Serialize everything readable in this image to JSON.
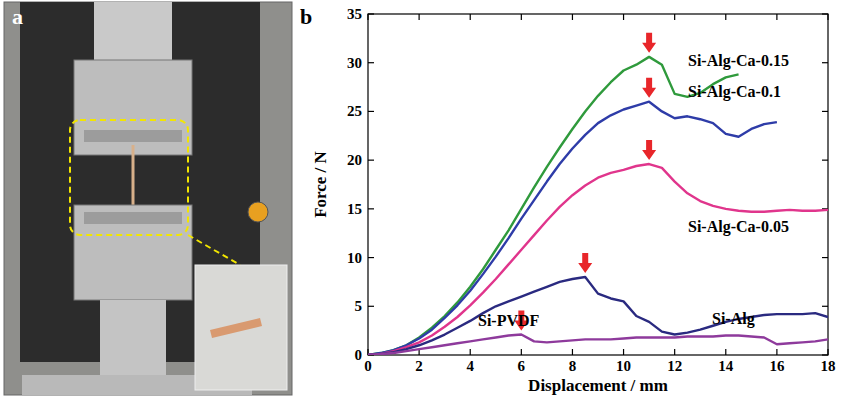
{
  "panel_a": {
    "label": "a"
  },
  "chart_data": {
    "type": "line",
    "panel_label": "b",
    "x_label": "Displacement / mm",
    "y_label": "Force / N",
    "xlim": [
      0,
      18
    ],
    "xticks": [
      0,
      2,
      4,
      6,
      8,
      10,
      12,
      14,
      16,
      18
    ],
    "ylim": [
      0,
      35
    ],
    "yticks": [
      0,
      5,
      10,
      15,
      20,
      25,
      30,
      35
    ],
    "grid": false,
    "x": [
      0,
      0.5,
      1,
      1.5,
      2,
      2.5,
      3,
      3.5,
      4,
      4.5,
      5,
      5.5,
      6,
      6.5,
      7,
      7.5,
      8,
      8.5,
      9,
      9.5,
      10,
      10.5,
      11,
      11.5,
      12,
      12.5,
      13,
      13.5,
      14,
      14.5,
      15,
      15.5,
      16,
      16.5,
      17,
      17.5,
      18
    ],
    "series": [
      {
        "name": "Si-Alg-Ca-0.15",
        "color": "#2f9a3c",
        "values": [
          0,
          0.2,
          0.5,
          1,
          1.8,
          2.8,
          4,
          5.4,
          7,
          8.8,
          10.8,
          12.8,
          15,
          17.2,
          19.3,
          21.3,
          23.2,
          25,
          26.6,
          28,
          29.2,
          29.8,
          30.6,
          29.8,
          26.8,
          26.5,
          26.9,
          27.8,
          28.5,
          28.8,
          null,
          null,
          null,
          null,
          null,
          null,
          null
        ]
      },
      {
        "name": "Si-Alg-Ca-0.1",
        "color": "#2e3ca8",
        "values": [
          0,
          0.2,
          0.5,
          1,
          1.7,
          2.6,
          3.8,
          5.1,
          6.6,
          8.3,
          10.1,
          12,
          14,
          15.9,
          17.8,
          19.6,
          21.2,
          22.6,
          23.8,
          24.6,
          25.2,
          25.6,
          26,
          25,
          24.3,
          24.5,
          24.2,
          23.8,
          22.7,
          22.4,
          23.2,
          23.7,
          23.9,
          null,
          null,
          null,
          null
        ]
      },
      {
        "name": "Si-Alg-Ca-0.05",
        "color": "#e0358c",
        "values": [
          0,
          0.1,
          0.4,
          0.8,
          1.3,
          2,
          2.9,
          3.9,
          5.1,
          6.4,
          7.8,
          9.3,
          10.8,
          12.3,
          13.8,
          15.2,
          16.4,
          17.4,
          18.2,
          18.7,
          19,
          19.4,
          19.6,
          19.2,
          17.8,
          16.6,
          15.8,
          15.3,
          15,
          14.8,
          14.7,
          14.7,
          14.8,
          14.9,
          14.8,
          14.8,
          14.9
        ]
      },
      {
        "name": "Si-Alg",
        "color": "#2a2a80",
        "values": [
          0,
          0.1,
          0.3,
          0.6,
          1,
          1.5,
          2.1,
          2.8,
          3.5,
          4.3,
          5,
          5.5,
          6,
          6.5,
          7,
          7.5,
          7.8,
          8,
          6.3,
          5.8,
          5.5,
          4,
          3.4,
          2.4,
          2.1,
          2.3,
          2.6,
          3,
          3.4,
          3.7,
          3.9,
          4.1,
          4.2,
          4.2,
          4.2,
          4.3,
          3.9
        ]
      },
      {
        "name": "Si-PVDF",
        "color": "#8e3a9c",
        "values": [
          0,
          0.1,
          0.2,
          0.4,
          0.6,
          0.8,
          1,
          1.2,
          1.4,
          1.6,
          1.8,
          2,
          2.1,
          1.4,
          1.3,
          1.4,
          1.5,
          1.6,
          1.6,
          1.6,
          1.7,
          1.8,
          1.8,
          1.8,
          1.8,
          1.9,
          1.9,
          1.9,
          2,
          2,
          1.9,
          1.8,
          1.1,
          1.2,
          1.3,
          1.4,
          1.6
        ]
      }
    ]
  }
}
